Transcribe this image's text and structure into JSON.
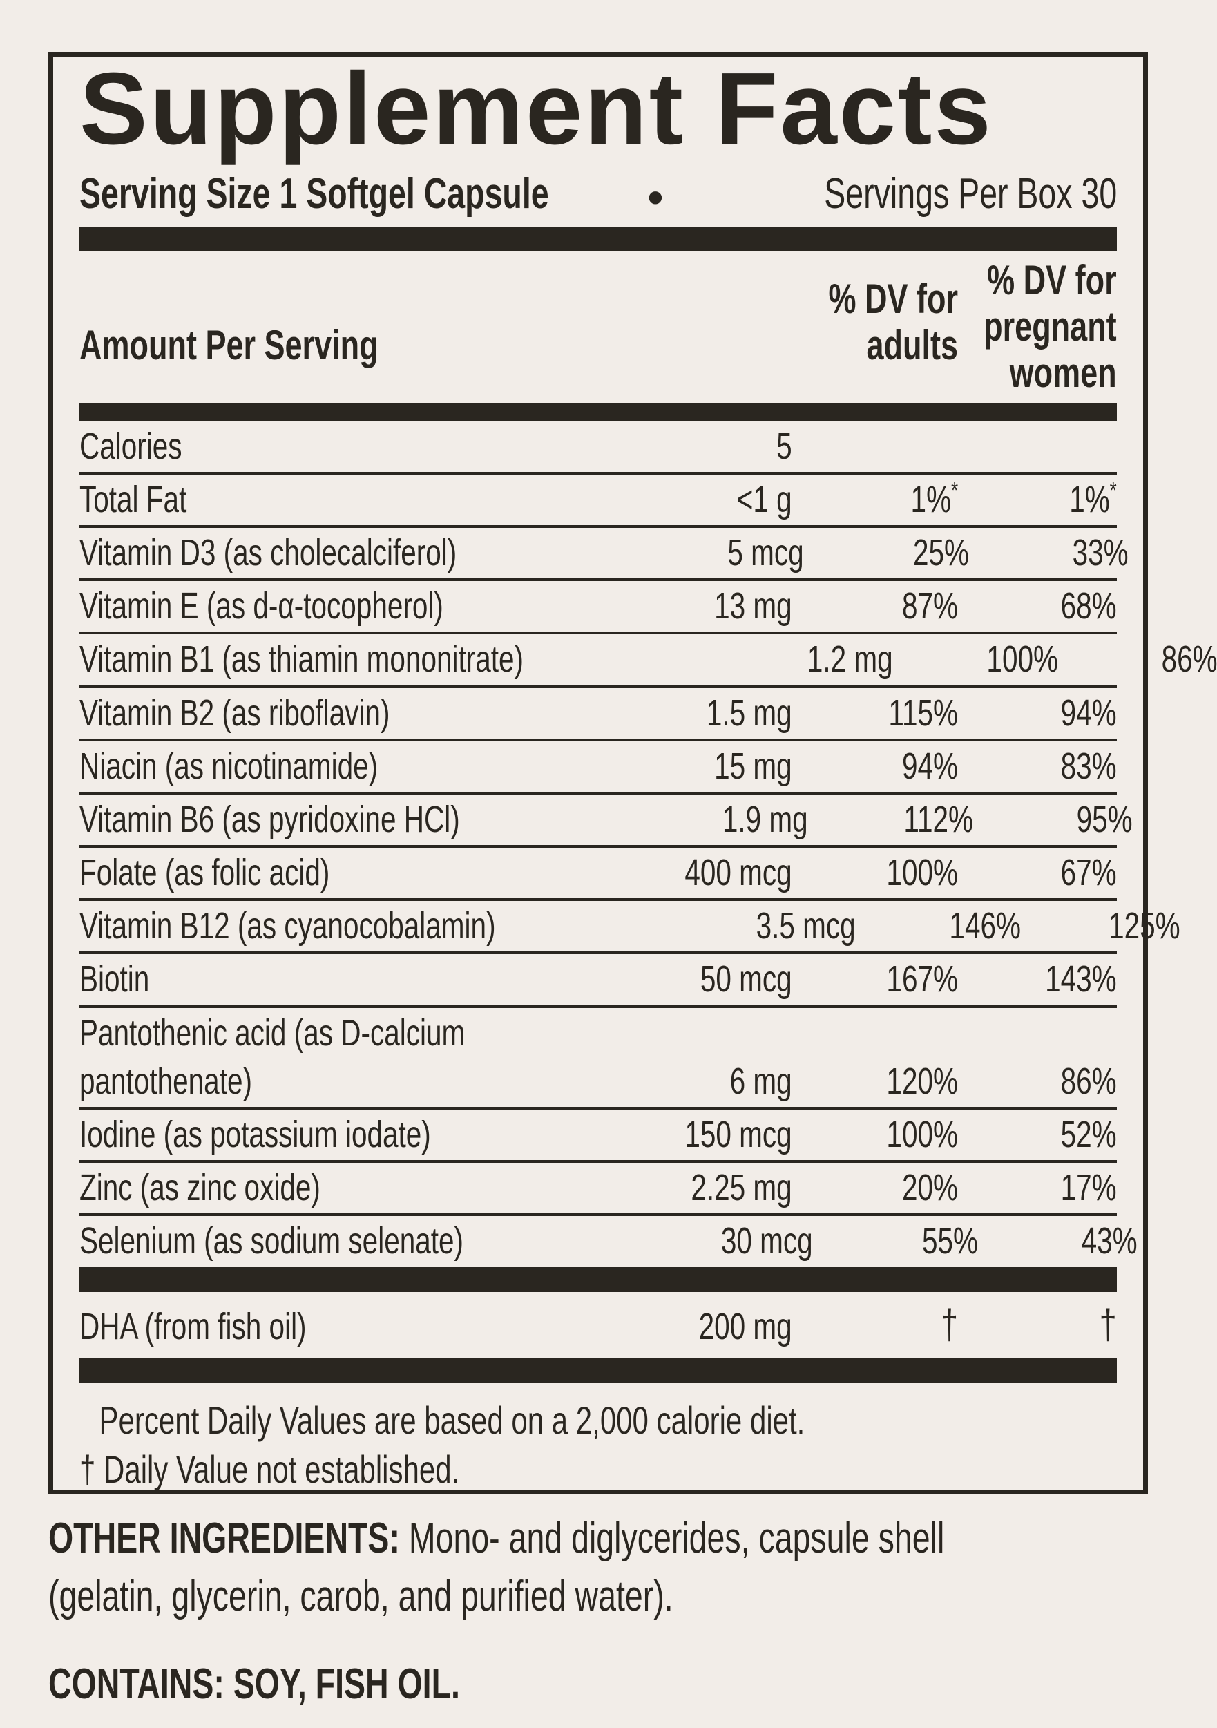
{
  "colors": {
    "background": "#f2ede8",
    "ink": "#2a2620"
  },
  "label": {
    "title": "Supplement Facts",
    "serving_size": "Serving Size 1 Softgel Capsule",
    "bullet": "•",
    "servings_per_box": "Servings Per Box 30",
    "header": {
      "amount": "Amount Per Serving",
      "adults": "% DV for\nadults",
      "pregnant": "% DV for\npregnant\nwomen"
    },
    "rows": [
      {
        "label": "Calories",
        "amount": "5",
        "adults": "",
        "pregnant": ""
      },
      {
        "label": "Total Fat",
        "amount": "<1 g",
        "adults": "1%",
        "adults_sup": "*",
        "pregnant": "1%",
        "pregnant_sup": "*"
      },
      {
        "label": "Vitamin D3 (as cholecalciferol)",
        "amount": "5 mcg",
        "adults": "25%",
        "pregnant": "33%"
      },
      {
        "label": "Vitamin E (as d-α-tocopherol)",
        "amount": "13 mg",
        "adults": "87%",
        "pregnant": "68%"
      },
      {
        "label": "Vitamin B1 (as thiamin mononitrate)",
        "amount": "1.2 mg",
        "adults": "100%",
        "pregnant": "86%"
      },
      {
        "label": "Vitamin B2 (as riboflavin)",
        "amount": "1.5 mg",
        "adults": "115%",
        "pregnant": "94%"
      },
      {
        "label": "Niacin (as nicotinamide)",
        "amount": "15 mg",
        "adults": "94%",
        "pregnant": "83%"
      },
      {
        "label": "Vitamin B6 (as pyridoxine HCl)",
        "amount": "1.9 mg",
        "adults": "112%",
        "pregnant": "95%"
      },
      {
        "label": "Folate (as folic acid)",
        "amount": "400 mcg",
        "adults": "100%",
        "pregnant": "67%"
      },
      {
        "label": "Vitamin B12 (as cyanocobalamin)",
        "amount": "3.5 mcg",
        "adults": "146%",
        "pregnant": "125%"
      },
      {
        "label": "Biotin",
        "amount": "50 mcg",
        "adults": "167%",
        "pregnant": "143%"
      },
      {
        "label": "Pantothenic acid (as D-calcium pantothenate)",
        "amount": "6 mg",
        "adults": "120%",
        "pregnant": "86%"
      },
      {
        "label": "Iodine (as potassium iodate)",
        "amount": "150 mcg",
        "adults": "100%",
        "pregnant": "52%"
      },
      {
        "label": "Zinc (as zinc oxide)",
        "amount": "2.25 mg",
        "adults": "20%",
        "pregnant": "17%"
      },
      {
        "label": "Selenium (as sodium selenate)",
        "amount": "30 mcg",
        "adults": "55%",
        "pregnant": "43%"
      }
    ],
    "dha": {
      "label": "DHA (from fish oil)",
      "amount": "200 mg",
      "adults": "†",
      "pregnant": "†"
    },
    "footnotes": {
      "percent_dv": "Percent Daily Values are based on a 2,000 calorie diet.",
      "dagger": "† Daily Value not established."
    }
  },
  "below": {
    "other_ingredients_label": "OTHER INGREDIENTS:",
    "other_ingredients_text": " Mono- and diglycerides, capsule shell (gelatin, glycerin, carob, and purified water).",
    "contains": "CONTAINS: SOY, FISH OIL."
  }
}
